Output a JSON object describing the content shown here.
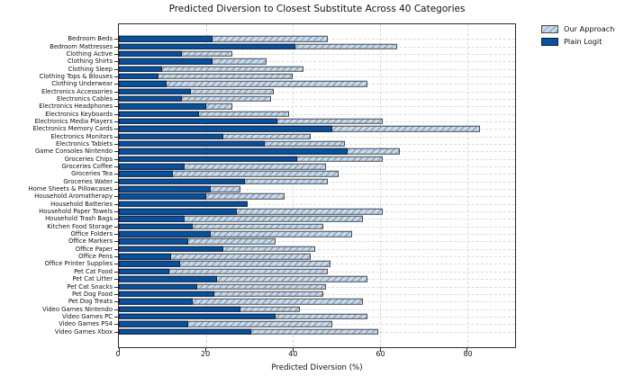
{
  "chart_data": {
    "type": "bar",
    "orientation": "horizontal",
    "title": "Predicted Diversion to Closest Substitute Across 40 Categories",
    "xlabel": "Predicted Diversion (%)",
    "xlim": [
      0,
      91
    ],
    "xticks": [
      0,
      20,
      40,
      60,
      80
    ],
    "grid": true,
    "legend_position": "upper-right-outside",
    "categories": [
      "Bedroom Beds",
      "Bedroom Mattresses",
      "Clothing Active",
      "Clothing Shirts",
      "Clothing Sleep",
      "Clothing Tops & Blouses",
      "Clothing Underwear",
      "Electronics Accessories",
      "Electronics Cables",
      "Electronics Headphones",
      "Electronics Keyboards",
      "Electronics Media Players",
      "Electronics Memory Cards",
      "Electronics Monitors",
      "Electronics Tablets",
      "Game Consoles Nintendo",
      "Groceries Chips",
      "Groceries Coffee",
      "Groceries Tea",
      "Groceries Water",
      "Home Sheets & Pillowcases",
      "Household Aromatherapy",
      "Household Batteries",
      "Household Paper Towels",
      "Household Trash Bags",
      "Kitchen Food Storage",
      "Office Folders",
      "Office Markers",
      "Office Paper",
      "Office Pens",
      "Office Printer Supplies",
      "Pet Cat Food",
      "Pet Cat Litter",
      "Pet Cat Snacks",
      "Pet Dog Food",
      "Pet Dog Treats",
      "Video Games Nintendo",
      "Video Games PC",
      "Video Games PS4",
      "Video Games Xbox"
    ],
    "series": [
      {
        "name": "Our Approach",
        "color": "#c6dbef",
        "hatch": "//",
        "values": [
          48,
          64,
          26,
          34,
          42.5,
          40,
          57,
          35.5,
          35,
          26,
          39,
          60.5,
          83,
          44,
          52,
          64.5,
          60.5,
          47.5,
          50.5,
          48,
          28,
          38,
          29.5,
          60.5,
          56,
          47,
          53.5,
          36,
          45,
          44,
          48.5,
          48,
          57,
          47.5,
          47,
          56,
          41.5,
          57,
          49,
          59.5
        ]
      },
      {
        "name": "Plain Logit",
        "color": "#08519c",
        "hatch": null,
        "values": [
          21.5,
          40.5,
          14.5,
          21.5,
          10,
          9,
          11,
          16.5,
          14.5,
          20,
          18.5,
          36.5,
          49,
          24,
          33.5,
          52.5,
          41,
          15,
          12.5,
          29,
          21,
          20,
          29.5,
          27,
          15,
          17,
          21,
          16,
          24,
          12,
          14,
          11.5,
          22.5,
          18,
          22,
          17,
          28,
          36,
          16,
          30.5
        ]
      }
    ]
  },
  "legend": {
    "items": [
      {
        "label": "Our Approach"
      },
      {
        "label": "Plain Logit"
      }
    ]
  }
}
